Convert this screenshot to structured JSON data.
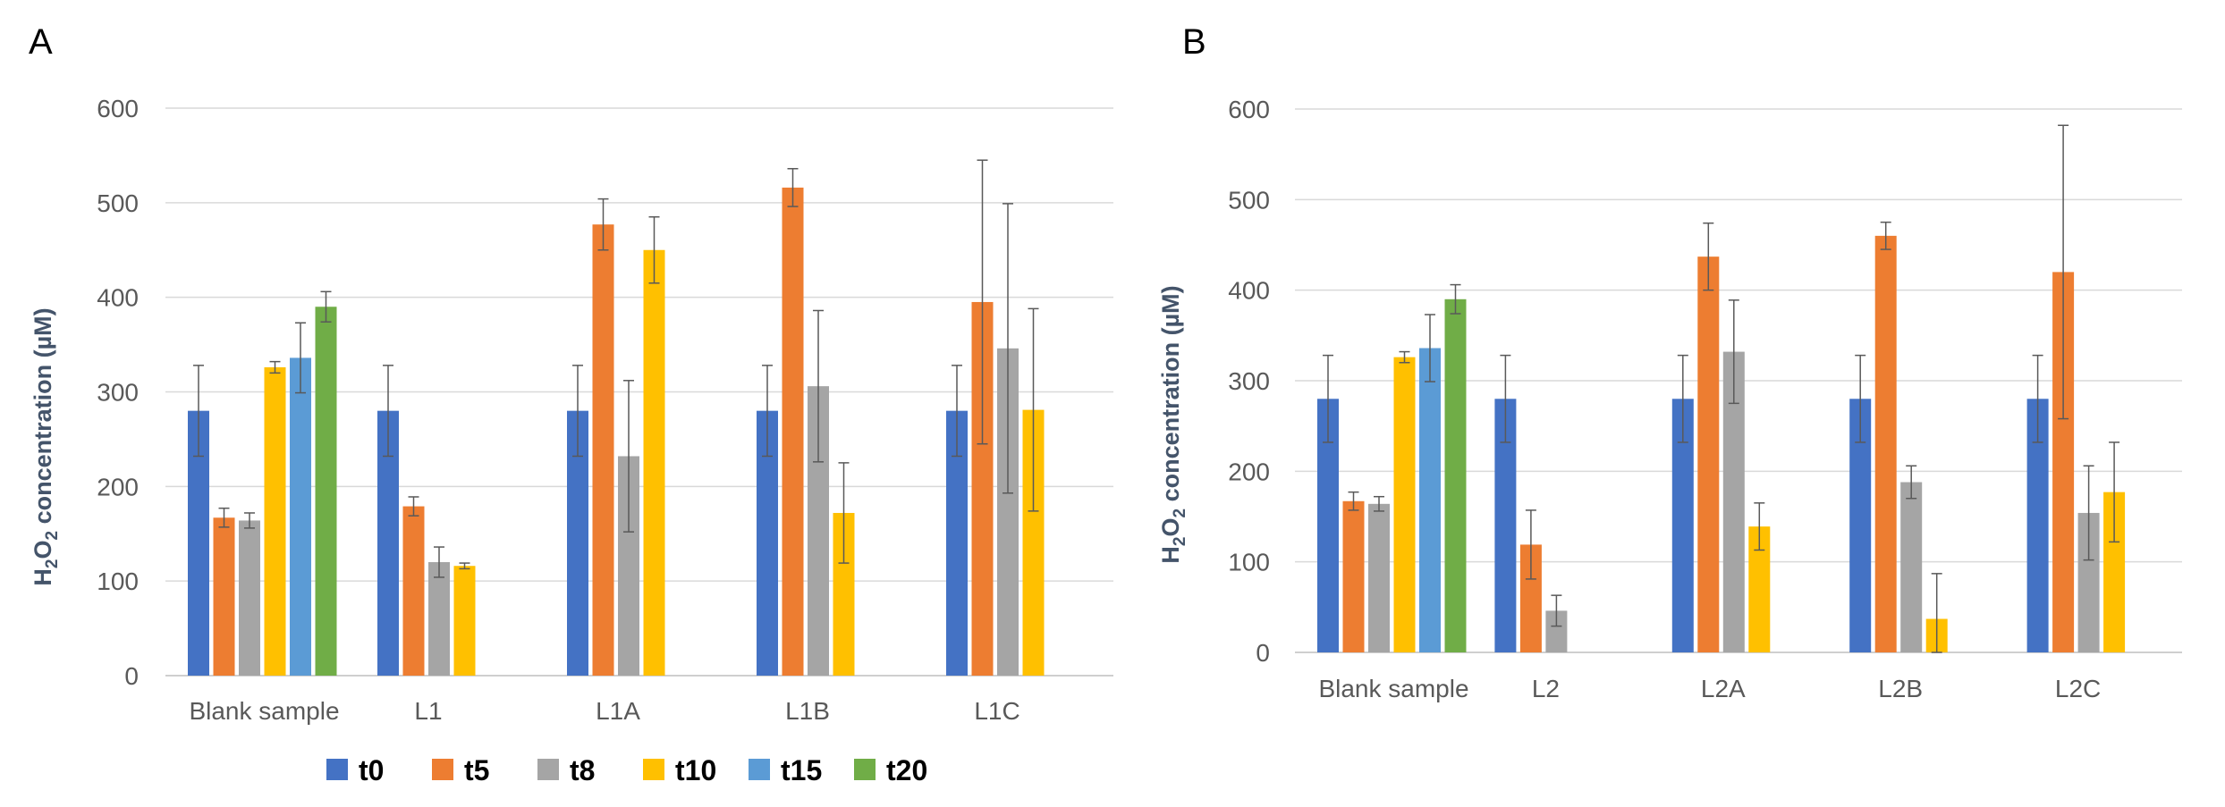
{
  "legend": {
    "series_names": [
      "t0",
      "t5",
      "t8",
      "t10",
      "t15",
      "t20"
    ],
    "colors": [
      "#4472c4",
      "#ed7d31",
      "#a5a5a5",
      "#ffc000",
      "#5b9bd5",
      "#70ad47"
    ]
  },
  "chart_data": [
    {
      "type": "bar",
      "panel": "A",
      "ylabel_prefix": "H",
      "ylabel_sub1": "2",
      "ylabel_mid": "O",
      "ylabel_sub2": "2",
      "ylabel_suffix": " concentration (µM)",
      "ylim": [
        0,
        600
      ],
      "yticks": [
        "0",
        "100",
        "200",
        "300",
        "400",
        "500",
        "600"
      ],
      "grid": true,
      "legend_position": "bottom",
      "categories": [
        "Blank sample",
        "L1",
        "L1A",
        "L1B",
        "L1C"
      ],
      "series": [
        {
          "name": "t0",
          "values": [
            280,
            280,
            280,
            280,
            280
          ],
          "errors": [
            48,
            48,
            48,
            48,
            48
          ]
        },
        {
          "name": "t5",
          "values": [
            167,
            179,
            477,
            516,
            395
          ],
          "errors": [
            10,
            10,
            27,
            20,
            150
          ]
        },
        {
          "name": "t8",
          "values": [
            164,
            120,
            232,
            306,
            346
          ],
          "errors": [
            8,
            16,
            80,
            80,
            153
          ]
        },
        {
          "name": "t10",
          "values": [
            326,
            116,
            450,
            172,
            281
          ],
          "errors": [
            6,
            3,
            35,
            53,
            107
          ]
        },
        {
          "name": "t15",
          "values": [
            336,
            null,
            null,
            null,
            null
          ],
          "errors": [
            37,
            null,
            null,
            null,
            null
          ]
        },
        {
          "name": "t20",
          "values": [
            390,
            null,
            null,
            null,
            null
          ],
          "errors": [
            16,
            null,
            null,
            null,
            null
          ]
        }
      ]
    },
    {
      "type": "bar",
      "panel": "B",
      "ylabel_prefix": "H",
      "ylabel_sub1": "2",
      "ylabel_mid": "O",
      "ylabel_sub2": "2",
      "ylabel_suffix": " concentration (µM)",
      "ylim": [
        0,
        600
      ],
      "yticks": [
        "0",
        "100",
        "200",
        "300",
        "400",
        "500",
        "600"
      ],
      "grid": true,
      "legend_position": "bottom",
      "categories": [
        "Blank sample",
        "L2",
        "L2A",
        "L2B",
        "L2C"
      ],
      "series": [
        {
          "name": "t0",
          "values": [
            280,
            280,
            280,
            280,
            280
          ],
          "errors": [
            48,
            48,
            48,
            48,
            48
          ]
        },
        {
          "name": "t5",
          "values": [
            167,
            119,
            437,
            460,
            420
          ],
          "errors": [
            10,
            38,
            37,
            15,
            162
          ]
        },
        {
          "name": "t8",
          "values": [
            164,
            46,
            332,
            188,
            154
          ],
          "errors": [
            8,
            17,
            57,
            18,
            52
          ]
        },
        {
          "name": "t10",
          "values": [
            326,
            null,
            139,
            37,
            177
          ],
          "errors": [
            6,
            null,
            26,
            50,
            55
          ]
        },
        {
          "name": "t15",
          "values": [
            336,
            null,
            null,
            null,
            null
          ],
          "errors": [
            37,
            null,
            null,
            null,
            null
          ]
        },
        {
          "name": "t20",
          "values": [
            390,
            null,
            null,
            null,
            null
          ],
          "errors": [
            16,
            null,
            null,
            null,
            null
          ]
        }
      ]
    }
  ]
}
